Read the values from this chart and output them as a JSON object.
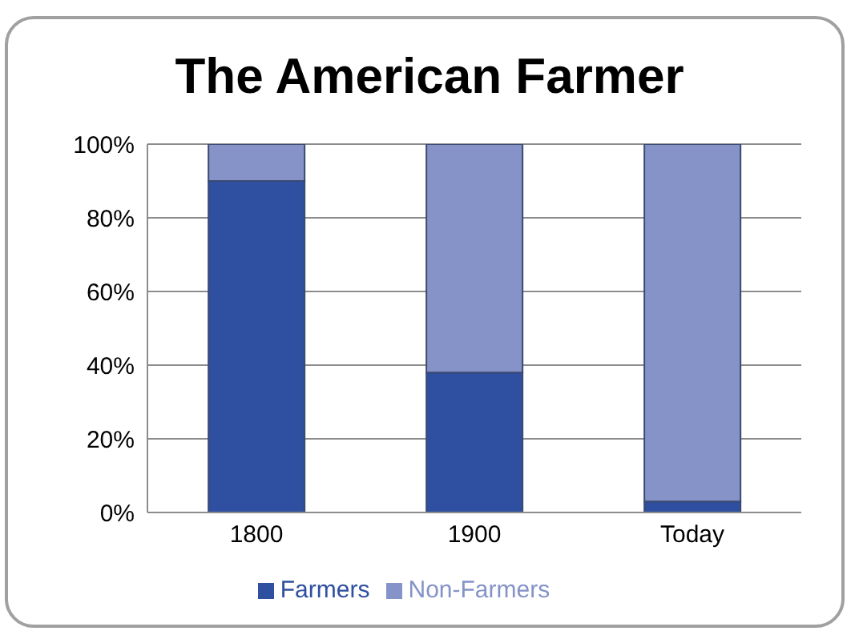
{
  "chart_data": {
    "type": "bar",
    "title": "The American Farmer",
    "categories": [
      "1800",
      "1900",
      "Today"
    ],
    "stacked": true,
    "series": [
      {
        "name": "Farmers",
        "color": "#2f4fa0",
        "values": [
          90,
          38,
          3
        ]
      },
      {
        "name": "Non-Farmers",
        "color": "#8593c8",
        "values": [
          10,
          62,
          97
        ]
      }
    ],
    "ylim": [
      0,
      100
    ],
    "yticks": [
      {
        "value": 0,
        "label": "0%"
      },
      {
        "value": 20,
        "label": "20%"
      },
      {
        "value": 40,
        "label": "40%"
      },
      {
        "value": 60,
        "label": "60%"
      },
      {
        "value": 80,
        "label": "80%"
      },
      {
        "value": 100,
        "label": "100%"
      }
    ],
    "grid": "y",
    "legend": "bottom"
  }
}
